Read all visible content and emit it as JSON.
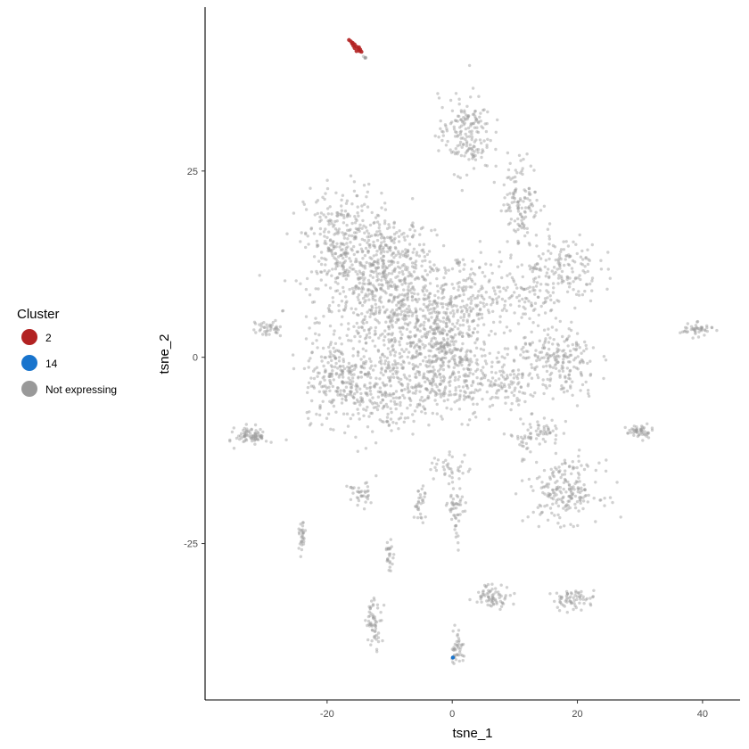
{
  "chart_data": {
    "type": "scatter",
    "title": "",
    "xlabel": "tsne_1",
    "ylabel": "tsne_2",
    "xlim": [
      -39.5,
      46
    ],
    "ylim": [
      -46,
      47
    ],
    "x_ticks": [
      -20,
      0,
      20,
      40
    ],
    "y_ticks": [
      -25,
      0,
      25
    ],
    "grid": false,
    "legend": {
      "title": "Cluster",
      "placement": "left",
      "entries": [
        {
          "label": "2",
          "color": "#b22222"
        },
        {
          "label": "14",
          "color": "#1874cd"
        },
        {
          "label": "Not expressing",
          "color": "#999999"
        }
      ]
    },
    "series": [
      {
        "name": "2",
        "color": "#b22222",
        "points": [
          [
            -16.5,
            42.6
          ],
          [
            -16.2,
            42.4
          ],
          [
            -15.9,
            42.2
          ],
          [
            -15.6,
            42.0
          ],
          [
            -15.3,
            41.7
          ],
          [
            -15.6,
            41.5
          ],
          [
            -15.0,
            41.4
          ],
          [
            -14.8,
            41.1
          ],
          [
            -15.3,
            41.1
          ],
          [
            -14.5,
            41.0
          ],
          [
            -16.0,
            42.1
          ],
          [
            -15.8,
            41.8
          ],
          [
            -14.9,
            41.6
          ],
          [
            -14.7,
            41.3
          ]
        ]
      },
      {
        "name": "14",
        "color": "#1874cd",
        "points": [
          [
            0.1,
            -40.3
          ]
        ]
      },
      {
        "name": "Not expressing",
        "color": "#999999",
        "clusters": [
          {
            "cx": -8.5,
            "cy": 5,
            "sx": 8,
            "sy": 6.5,
            "n": 700
          },
          {
            "cx": -18,
            "cy": 15,
            "sx": 3.5,
            "sy": 5,
            "n": 300
          },
          {
            "cx": -10,
            "cy": 13,
            "sx": 4,
            "sy": 4,
            "n": 250
          },
          {
            "cx": -2,
            "cy": 1,
            "sx": 4,
            "sy": 5,
            "n": 300
          },
          {
            "cx": 3,
            "cy": 8,
            "sx": 3,
            "sy": 3,
            "n": 100
          },
          {
            "cx": -18,
            "cy": -3,
            "sx": 3.5,
            "sy": 3.5,
            "n": 200
          },
          {
            "cx": -10,
            "cy": -5,
            "sx": 4.5,
            "sy": 3,
            "n": 180
          },
          {
            "cx": 2,
            "cy": -3,
            "sx": 4,
            "sy": 3,
            "n": 150
          },
          {
            "cx": 2,
            "cy": 30,
            "sx": 2.6,
            "sy": 3.2,
            "n": 180
          },
          {
            "cx": 11,
            "cy": 21,
            "sx": 1.8,
            "sy": 3.5,
            "n": 120
          },
          {
            "cx": 17,
            "cy": 12,
            "sx": 4,
            "sy": 3,
            "n": 160
          },
          {
            "cx": 11,
            "cy": 8,
            "sx": 3,
            "sy": 2.5,
            "n": 80
          },
          {
            "cx": 17,
            "cy": -1,
            "sx": 4,
            "sy": 3.5,
            "n": 220
          },
          {
            "cx": 9,
            "cy": -2,
            "sx": 2.5,
            "sy": 3,
            "n": 70
          },
          {
            "cx": 18,
            "cy": -18,
            "sx": 3.5,
            "sy": 2.5,
            "n": 200
          },
          {
            "cx": 12,
            "cy": -11,
            "sx": 2,
            "sy": 2,
            "n": 40
          },
          {
            "cx": -29.5,
            "cy": 3.8,
            "sx": 1.5,
            "sy": 0.6,
            "n": 40
          },
          {
            "cx": -32,
            "cy": -10.5,
            "sx": 1.6,
            "sy": 0.8,
            "n": 80
          },
          {
            "cx": 39,
            "cy": 3.7,
            "sx": 1.6,
            "sy": 0.5,
            "n": 45
          },
          {
            "cx": 30,
            "cy": -10,
            "sx": 1.3,
            "sy": 0.6,
            "n": 50
          },
          {
            "cx": -15,
            "cy": -18.5,
            "sx": 1.1,
            "sy": 1.1,
            "n": 35
          },
          {
            "cx": -5,
            "cy": -19.5,
            "sx": 0.7,
            "sy": 1.4,
            "n": 30
          },
          {
            "cx": 0.5,
            "cy": -20,
            "sx": 0.8,
            "sy": 1.2,
            "n": 35
          },
          {
            "cx": -24,
            "cy": -24.5,
            "sx": 0.3,
            "sy": 1.3,
            "n": 30
          },
          {
            "cx": -10,
            "cy": -26.5,
            "sx": 0.4,
            "sy": 1.2,
            "n": 25
          },
          {
            "cx": 0.7,
            "cy": -23.5,
            "sx": 0.3,
            "sy": 1.5,
            "n": 12
          },
          {
            "cx": 6.5,
            "cy": -32,
            "sx": 1.8,
            "sy": 1.0,
            "n": 70
          },
          {
            "cx": 19.5,
            "cy": -32.5,
            "sx": 2.2,
            "sy": 0.8,
            "n": 65
          },
          {
            "cx": -12.5,
            "cy": -35.5,
            "sx": 0.8,
            "sy": 2.0,
            "n": 60
          },
          {
            "cx": 0.8,
            "cy": -39,
            "sx": 0.6,
            "sy": 1.6,
            "n": 45
          },
          {
            "cx": -13.8,
            "cy": 40.3,
            "sx": 0.3,
            "sy": 0.3,
            "n": 6
          },
          {
            "cx": -0.5,
            "cy": -15,
            "sx": 2,
            "sy": 1.5,
            "n": 40
          },
          {
            "cx": 15,
            "cy": -10,
            "sx": 1.5,
            "sy": 1,
            "n": 30
          }
        ]
      }
    ]
  }
}
